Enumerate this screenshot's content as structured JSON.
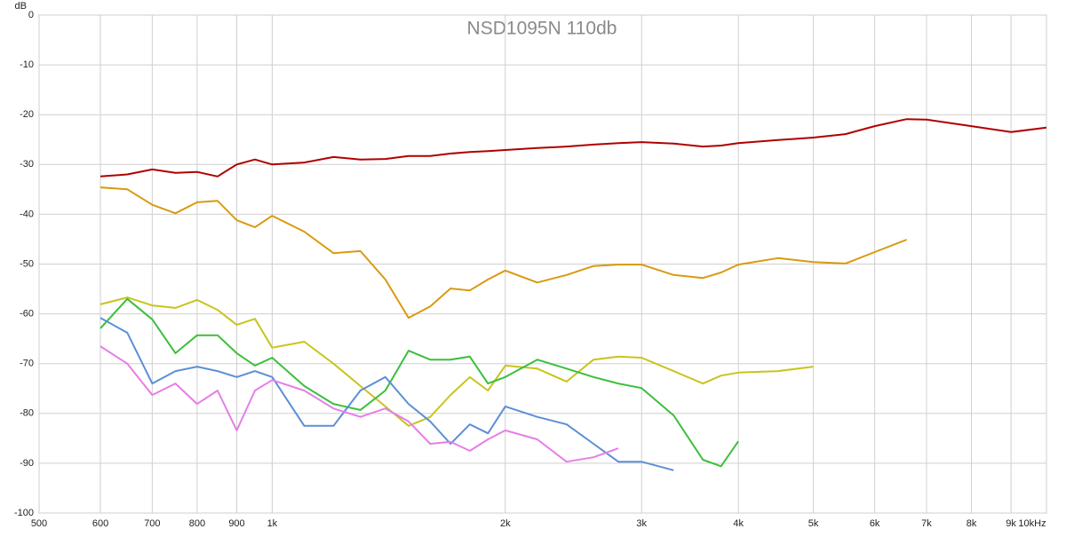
{
  "chart_data": {
    "type": "line",
    "title": "NSD1095N 110db",
    "y_label": "dB",
    "x_scale": "log",
    "grid": true,
    "x": [
      600,
      650,
      700,
      750,
      800,
      850,
      900,
      950,
      1000,
      1100,
      1200,
      1300,
      1400,
      1500,
      1600,
      1700,
      1800,
      1900,
      2000,
      2200,
      2400,
      2600,
      2800,
      3000,
      3300,
      3600,
      3800,
      4000,
      4500,
      5000,
      5500,
      6000,
      6600,
      7000,
      8000,
      9000,
      10000
    ],
    "xlim": [
      500,
      10000
    ],
    "xticks": [
      500,
      600,
      700,
      800,
      900,
      {
        "value": 1000,
        "label": "1k"
      },
      {
        "value": 2000,
        "label": "2k"
      },
      {
        "value": 3000,
        "label": "3k"
      },
      {
        "value": 4000,
        "label": "4k"
      },
      {
        "value": 5000,
        "label": "5k"
      },
      {
        "value": 6000,
        "label": "6k"
      },
      {
        "value": 7000,
        "label": "7k"
      },
      {
        "value": 8000,
        "label": "8k"
      },
      {
        "value": 9000,
        "label": "9k"
      },
      {
        "value": 10000,
        "label": "10kHz"
      }
    ],
    "ylim": [
      -100,
      0
    ],
    "yticks": [
      0,
      -10,
      -20,
      -30,
      -40,
      -50,
      -60,
      -70,
      -80,
      -90,
      -100
    ],
    "series": [
      {
        "color": "#b00000",
        "values": [
          -32.4,
          -32,
          -31,
          -31.7,
          -31.5,
          -32.4,
          -30,
          -29,
          -30,
          -29.6,
          -28.5,
          -29,
          -28.9,
          -28.3,
          -28.3,
          -27.8,
          -27.5,
          -27.3,
          -27.1,
          -26.7,
          -26.4,
          -26,
          -25.7,
          -25.5,
          -25.8,
          -26.4,
          -26.2,
          -25.7,
          -25.1,
          -24.6,
          -23.9,
          -22.3,
          -20.9,
          -21,
          -22.3,
          -23.5,
          -22.6
        ]
      },
      {
        "color": "#d99a10",
        "values": [
          -34.6,
          -35,
          -38.1,
          -39.8,
          -37.6,
          -37.3,
          -41.2,
          -42.6,
          -40.3,
          -43.5,
          -47.8,
          -47.4,
          -53.1,
          -60.8,
          -58.5,
          -54.9,
          -55.3,
          -53.1,
          -51.3,
          -53.7,
          -52.2,
          -50.4,
          -50.1,
          -50.1,
          -52.2,
          -52.8,
          -51.7,
          -50.1,
          -48.8,
          -49.6,
          -49.9,
          -47.6,
          -45.1,
          null,
          null,
          null,
          null
        ]
      },
      {
        "color": "#c9c41c",
        "values": [
          -58.1,
          -56.7,
          -58.3,
          -58.8,
          -57.2,
          -59.2,
          -62.2,
          -61,
          -66.8,
          -65.6,
          -70,
          -74.5,
          -78.6,
          -82.5,
          -80.7,
          -76.3,
          -72.7,
          -75.4,
          -70.4,
          -71,
          -73.6,
          -69.2,
          -68.6,
          -68.8,
          -71.5,
          -74,
          -72.4,
          -71.8,
          -71.5,
          -70.6,
          null,
          null,
          null,
          null,
          null,
          null,
          null
        ]
      },
      {
        "color": "#3cbf3c",
        "values": [
          -62.9,
          -57,
          -61.1,
          -67.9,
          -64.3,
          -64.3,
          -67.9,
          -70.4,
          -68.8,
          -74.5,
          -78.1,
          -79.3,
          -75.4,
          -67.4,
          -69.2,
          -69.2,
          -68.6,
          -74,
          -72.7,
          -69.2,
          -71,
          -72.7,
          -74,
          -74.9,
          -80.4,
          -89.3,
          -90.6,
          -85.6,
          null,
          null,
          null,
          null,
          null,
          null,
          null,
          null,
          null
        ]
      },
      {
        "color": "#5b8fd6",
        "values": [
          -60.8,
          -63.8,
          -74,
          -71.5,
          -70.6,
          -71.5,
          -72.7,
          -71.5,
          -72.7,
          -82.5,
          -82.5,
          -75.4,
          -72.7,
          -78.1,
          -81.6,
          -86.1,
          -82.2,
          -84,
          -78.6,
          -80.7,
          -82.2,
          -86.1,
          -89.7,
          -89.7,
          -91.4,
          null,
          null,
          null,
          null,
          null,
          null,
          null,
          null,
          null,
          null,
          null,
          null
        ]
      },
      {
        "color": "#e67ee6",
        "values": [
          -66.5,
          -70,
          -76.3,
          -74,
          -78.1,
          -75.4,
          -83.4,
          -75.4,
          -73.3,
          -75.4,
          -79,
          -80.7,
          -79,
          -81.6,
          -86.1,
          -85.7,
          -87.5,
          -85.2,
          -83.4,
          -85.2,
          -89.7,
          -88.8,
          -87,
          null,
          null,
          null,
          null,
          null,
          null,
          null,
          null,
          null,
          null,
          null,
          null,
          null,
          null
        ]
      }
    ]
  }
}
